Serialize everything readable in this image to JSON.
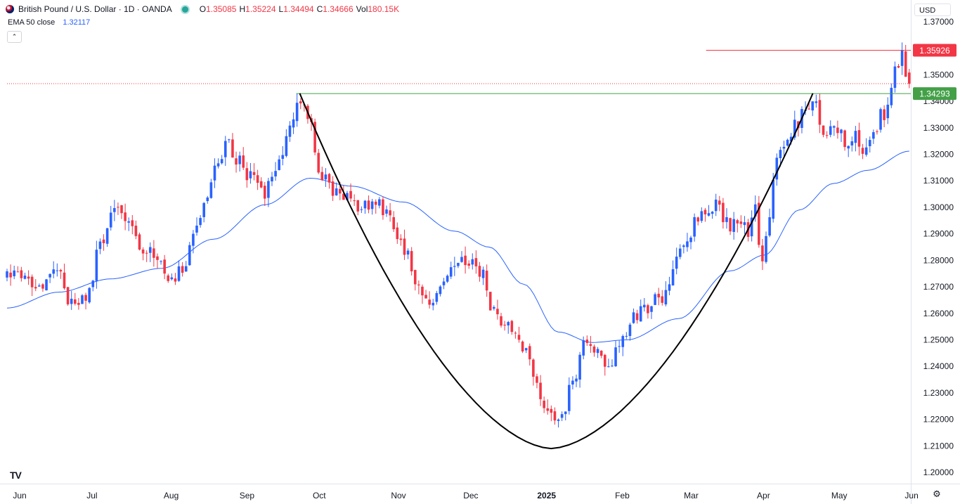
{
  "header": {
    "symbol_title": "British Pound / U.S. Dollar · 1D · OANDA",
    "ohlc": [
      {
        "key": "O",
        "value": "1.35085"
      },
      {
        "key": "H",
        "value": "1.35224"
      },
      {
        "key": "L",
        "value": "1.34494"
      },
      {
        "key": "C",
        "value": "1.34666"
      },
      {
        "key": "Vol",
        "value": "180.15K"
      }
    ]
  },
  "indicator": {
    "name": "EMA 50 close",
    "value": "1.32117"
  },
  "currency_button": "USD",
  "collapse_icon": "chevron-up-icon",
  "logo_text": "TV",
  "settings_icon": "gear-icon",
  "chart_data": {
    "type": "candlestick",
    "title": "British Pound / U.S. Dollar · 1D · OANDA",
    "yaxis": {
      "ticks": [
        "1.37000",
        "1.35000",
        "1.34000",
        "1.33000",
        "1.32000",
        "1.31000",
        "1.30000",
        "1.29000",
        "1.28000",
        "1.27000",
        "1.26000",
        "1.25000",
        "1.24000",
        "1.23000",
        "1.22000",
        "1.21000",
        "1.20000"
      ],
      "range": [
        1.2,
        1.37
      ]
    },
    "xaxis": {
      "labels": [
        {
          "text": "Jun",
          "index": 0
        },
        {
          "text": "Jul",
          "index": 21
        },
        {
          "text": "Aug",
          "index": 44
        },
        {
          "text": "Sep",
          "index": 66
        },
        {
          "text": "Oct",
          "index": 87
        },
        {
          "text": "Nov",
          "index": 110
        },
        {
          "text": "Dec",
          "index": 131
        },
        {
          "text": "2025",
          "index": 153,
          "bold": true
        },
        {
          "text": "Feb",
          "index": 175
        },
        {
          "text": "Mar",
          "index": 195
        },
        {
          "text": "Apr",
          "index": 216
        },
        {
          "text": "May",
          "index": 238
        },
        {
          "text": "Jun",
          "index": 259
        }
      ],
      "bar_count": 253
    },
    "colors": {
      "up": "#2962ff",
      "down": "#f23645",
      "ema": "#2962ff",
      "support": "#43a047",
      "resistance": "#f23645",
      "pattern": "#000000"
    },
    "price_labels": [
      {
        "text": "1.35926",
        "value": 1.35926,
        "color": "#f23645"
      },
      {
        "text": "1.34293",
        "value": 1.34293,
        "color": "#43a047"
      }
    ],
    "lines": [
      {
        "name": "resistance",
        "value": 1.35926,
        "from_index": 203,
        "color": "#f23645"
      },
      {
        "name": "support",
        "value": 1.34293,
        "from_index": 84,
        "color": "#43a047"
      },
      {
        "name": "last-price",
        "value": 1.34666,
        "from_index": 0,
        "color": "#f23645",
        "dotted": true
      }
    ],
    "cup_pattern": {
      "left": [
        85,
        1.343
      ],
      "bottom": [
        158,
        1.209
      ],
      "right": [
        234,
        1.343
      ]
    },
    "anchors": [
      [
        0,
        1.273
      ],
      [
        5,
        1.276
      ],
      [
        10,
        1.269
      ],
      [
        15,
        1.275
      ],
      [
        19,
        1.263
      ],
      [
        23,
        1.265
      ],
      [
        27,
        1.284
      ],
      [
        31,
        1.303
      ],
      [
        35,
        1.294
      ],
      [
        40,
        1.285
      ],
      [
        44,
        1.279
      ],
      [
        47,
        1.272
      ],
      [
        51,
        1.277
      ],
      [
        55,
        1.29
      ],
      [
        58,
        1.304
      ],
      [
        61,
        1.316
      ],
      [
        64,
        1.325
      ],
      [
        67,
        1.318
      ],
      [
        70,
        1.312
      ],
      [
        74,
        1.305
      ],
      [
        78,
        1.316
      ],
      [
        82,
        1.329
      ],
      [
        85,
        1.341
      ],
      [
        88,
        1.331
      ],
      [
        91,
        1.311
      ],
      [
        95,
        1.306
      ],
      [
        99,
        1.305
      ],
      [
        103,
        1.299
      ],
      [
        107,
        1.302
      ],
      [
        111,
        1.298
      ],
      [
        115,
        1.284
      ],
      [
        119,
        1.272
      ],
      [
        123,
        1.262
      ],
      [
        126,
        1.27
      ],
      [
        130,
        1.278
      ],
      [
        134,
        1.28
      ],
      [
        138,
        1.275
      ],
      [
        141,
        1.261
      ],
      [
        145,
        1.254
      ],
      [
        148,
        1.252
      ],
      [
        151,
        1.244
      ],
      [
        154,
        1.233
      ],
      [
        157,
        1.221
      ],
      [
        159,
        1.219
      ],
      [
        162,
        1.225
      ],
      [
        165,
        1.238
      ],
      [
        168,
        1.248
      ],
      [
        171,
        1.245
      ],
      [
        175,
        1.242
      ],
      [
        178,
        1.249
      ],
      [
        181,
        1.256
      ],
      [
        184,
        1.262
      ],
      [
        188,
        1.264
      ],
      [
        192,
        1.268
      ],
      [
        195,
        1.281
      ],
      [
        198,
        1.291
      ],
      [
        202,
        1.298
      ],
      [
        206,
        1.301
      ],
      [
        210,
        1.293
      ],
      [
        213,
        1.296
      ],
      [
        215,
        1.29
      ],
      [
        217,
        1.301
      ],
      [
        219,
        1.278
      ],
      [
        221,
        1.295
      ],
      [
        224,
        1.321
      ],
      [
        227,
        1.329
      ],
      [
        231,
        1.334
      ],
      [
        234,
        1.34
      ],
      [
        237,
        1.327
      ],
      [
        240,
        1.332
      ],
      [
        243,
        1.325
      ],
      [
        246,
        1.328
      ],
      [
        249,
        1.322
      ],
      [
        251,
        1.328
      ],
      [
        254,
        1.334
      ],
      [
        256,
        1.341
      ],
      [
        258,
        1.355
      ],
      [
        260,
        1.357
      ],
      [
        262,
        1.347
      ]
    ],
    "ema_anchors": [
      [
        0,
        1.262
      ],
      [
        15,
        1.268
      ],
      [
        30,
        1.273
      ],
      [
        45,
        1.277
      ],
      [
        60,
        1.288
      ],
      [
        75,
        1.301
      ],
      [
        88,
        1.311
      ],
      [
        100,
        1.308
      ],
      [
        115,
        1.302
      ],
      [
        130,
        1.291
      ],
      [
        140,
        1.285
      ],
      [
        150,
        1.271
      ],
      [
        160,
        1.253
      ],
      [
        170,
        1.249
      ],
      [
        180,
        1.25
      ],
      [
        195,
        1.258
      ],
      [
        210,
        1.276
      ],
      [
        220,
        1.282
      ],
      [
        230,
        1.299
      ],
      [
        240,
        1.309
      ],
      [
        250,
        1.314
      ],
      [
        262,
        1.3212
      ]
    ],
    "last": {
      "open": 1.35085,
      "high": 1.35224,
      "low": 1.34494,
      "close": 1.34666
    }
  }
}
